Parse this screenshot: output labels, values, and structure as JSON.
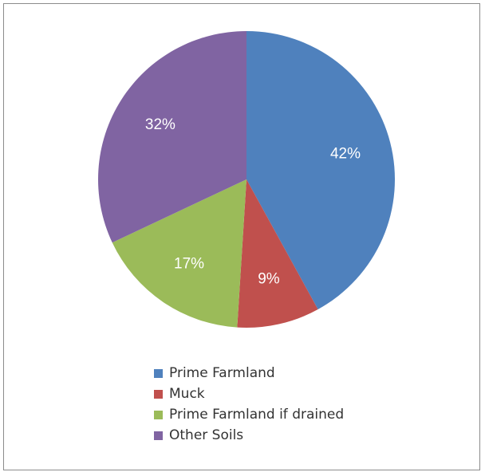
{
  "chart_data": {
    "type": "pie",
    "title": "",
    "slices": [
      {
        "label": "Prime Farmland",
        "value": 42,
        "display": "42%",
        "color": "#4f81bd"
      },
      {
        "label": "Muck",
        "value": 9,
        "display": "9%",
        "color": "#c0504d"
      },
      {
        "label": "Prime Farmland if drained",
        "value": 17,
        "display": "17%",
        "color": "#9bbb59"
      },
      {
        "label": "Other Soils",
        "value": 32,
        "display": "32%",
        "color": "#8064a2"
      }
    ],
    "start_angle": "12 o'clock",
    "direction": "clockwise",
    "legend_position": "bottom"
  },
  "legend": {
    "items": [
      {
        "label": "Prime Farmland",
        "color": "#4f81bd"
      },
      {
        "label": "Muck",
        "color": "#c0504d"
      },
      {
        "label": "Prime Farmland if drained",
        "color": "#9bbb59"
      },
      {
        "label": "Other Soils",
        "color": "#8064a2"
      }
    ]
  }
}
